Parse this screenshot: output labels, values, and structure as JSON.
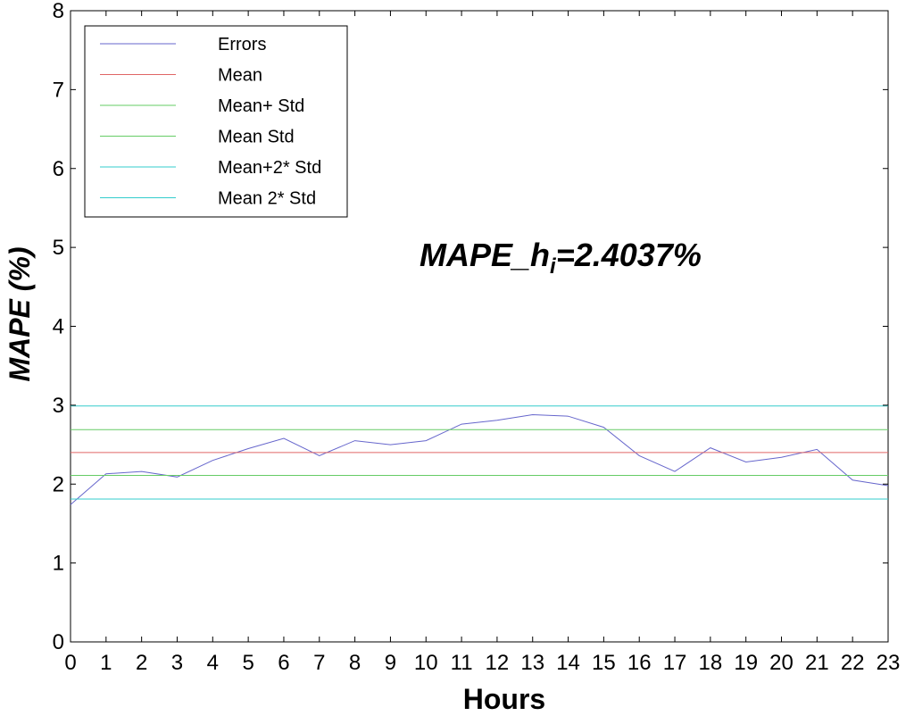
{
  "chart_data": {
    "type": "line",
    "xlabel": "Hours",
    "ylabel": "MAPE (%)",
    "xlim": [
      0,
      23
    ],
    "ylim": [
      0,
      8
    ],
    "x_ticks": [
      "0",
      "1",
      "2",
      "3",
      "4",
      "5",
      "6",
      "7",
      "8",
      "9",
      "10",
      "11",
      "12",
      "13",
      "14",
      "15",
      "16",
      "17",
      "18",
      "19",
      "20",
      "21",
      "22",
      "23"
    ],
    "y_ticks": [
      "0",
      "1",
      "2",
      "3",
      "4",
      "5",
      "6",
      "7",
      "8"
    ],
    "grid": false,
    "legend_position": "top-left",
    "series": [
      {
        "name": "Errors",
        "color": "#6666cc",
        "x": [
          0,
          1,
          2,
          3,
          4,
          5,
          6,
          7,
          8,
          9,
          10,
          11,
          12,
          13,
          14,
          15,
          16,
          17,
          18,
          19,
          20,
          21,
          22,
          23
        ],
        "values": [
          1.74,
          2.13,
          2.16,
          2.09,
          2.3,
          2.45,
          2.58,
          2.36,
          2.55,
          2.5,
          2.55,
          2.76,
          2.81,
          2.88,
          2.86,
          2.72,
          2.36,
          2.16,
          2.46,
          2.28,
          2.34,
          2.44,
          2.05,
          1.98
        ]
      },
      {
        "name": "Mean",
        "color": "#e06666",
        "values": [
          2.4,
          2.4
        ]
      },
      {
        "name": "Mean+ Std",
        "color": "#66cc66",
        "values": [
          2.69,
          2.69
        ]
      },
      {
        "name": "Mean  Std",
        "color": "#66cc66",
        "values": [
          2.11,
          2.11
        ]
      },
      {
        "name": "Mean+2* Std",
        "color": "#33cccc",
        "values": [
          2.99,
          2.99
        ]
      },
      {
        "name": "Mean  2* Std",
        "color": "#33cccc",
        "values": [
          1.81,
          1.81
        ]
      }
    ],
    "annotation": {
      "prefix": "MAPE_h",
      "subscript": "i",
      "value": "=2.4037%"
    }
  }
}
